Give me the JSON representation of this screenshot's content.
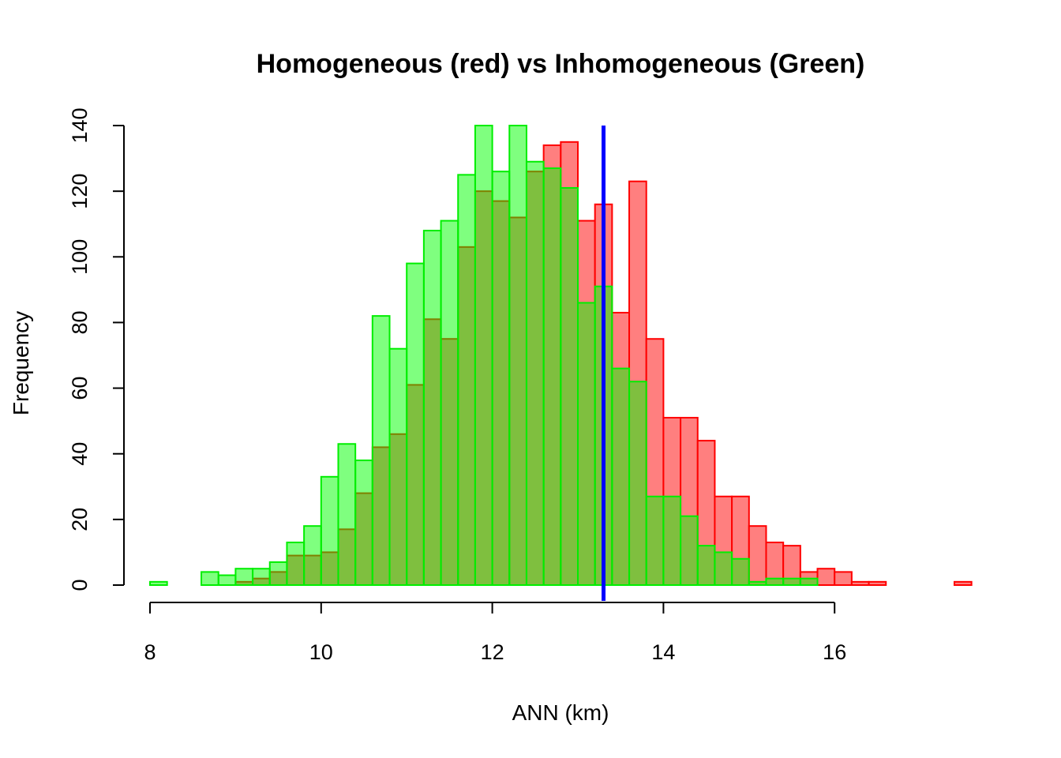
{
  "chart_data": {
    "type": "bar",
    "title": "Homogeneous (red) vs Inhomogeneous (Green)",
    "xlabel": "ANN (km)",
    "ylabel": "Frequency",
    "xlim": [
      8,
      17.6
    ],
    "ylim": [
      0,
      140
    ],
    "xticks": [
      8,
      10,
      12,
      14,
      16
    ],
    "yticks": [
      0,
      20,
      40,
      60,
      80,
      100,
      120,
      140
    ],
    "bin_width": 0.2,
    "series": [
      {
        "name": "Homogeneous",
        "fill": "#ff7f7f",
        "stroke": "#ff0000",
        "bin_starts": [
          8.2,
          8.4,
          8.6,
          8.8,
          9.0,
          9.2,
          9.4,
          9.6,
          9.8,
          10.0,
          10.2,
          10.4,
          10.6,
          10.8,
          11.0,
          11.2,
          11.4,
          11.6,
          11.8,
          12.0,
          12.2,
          12.4,
          12.6,
          12.8,
          13.0,
          13.2,
          13.4,
          13.6,
          13.8,
          14.0,
          14.2,
          14.4,
          14.6,
          14.8,
          15.0,
          15.2,
          15.4,
          15.6,
          15.8,
          16.0,
          16.2,
          16.4,
          16.6,
          16.8,
          17.0,
          17.2,
          17.4
        ],
        "values": [
          0,
          0,
          0,
          0,
          1,
          2,
          4,
          9,
          9,
          10,
          17,
          28,
          42,
          46,
          61,
          81,
          75,
          103,
          120,
          117,
          112,
          126,
          134,
          135,
          111,
          116,
          83,
          123,
          75,
          51,
          51,
          44,
          27,
          27,
          18,
          13,
          12,
          4,
          5,
          4,
          1,
          1,
          0,
          0,
          0,
          0,
          1
        ]
      },
      {
        "name": "Inhomogeneous",
        "fill": "rgba(0,255,0,0.5)",
        "stroke": "#00ee00",
        "bin_starts": [
          8.0,
          8.2,
          8.4,
          8.6,
          8.8,
          9.0,
          9.2,
          9.4,
          9.6,
          9.8,
          10.0,
          10.2,
          10.4,
          10.6,
          10.8,
          11.0,
          11.2,
          11.4,
          11.6,
          11.8,
          12.0,
          12.2,
          12.4,
          12.6,
          12.8,
          13.0,
          13.2,
          13.4,
          13.6,
          13.8,
          14.0,
          14.2,
          14.4,
          14.6,
          14.8,
          15.0,
          15.2,
          15.4,
          15.6
        ],
        "values": [
          1,
          0,
          0,
          4,
          3,
          5,
          5,
          7,
          13,
          18,
          33,
          43,
          38,
          82,
          72,
          98,
          108,
          111,
          125,
          140,
          126,
          140,
          129,
          127,
          121,
          86,
          91,
          66,
          62,
          27,
          27,
          21,
          12,
          10,
          8,
          1,
          2,
          2,
          2
        ]
      }
    ],
    "reference_line": {
      "x": 13.3,
      "color": "#0000ff"
    }
  }
}
